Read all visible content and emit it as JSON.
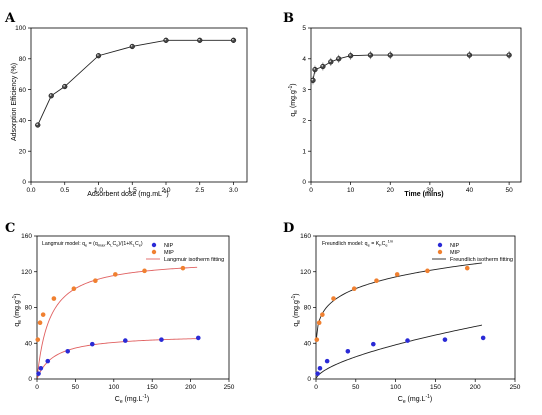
{
  "chart_data": [
    {
      "panel": "A",
      "type": "line",
      "xlabel": "Adsorbent dose (mg.mL⁻¹)",
      "ylabel": "Adsorption Efficiency (%)",
      "xlim": [
        0,
        3.2
      ],
      "ylim": [
        0,
        100
      ],
      "xticks": [
        "0.0",
        "0.5",
        "1.0",
        "1.5",
        "2.0",
        "2.5",
        "3.0"
      ],
      "yticks": [
        "0",
        "20",
        "40",
        "60",
        "80",
        "100"
      ],
      "series": [
        {
          "x": [
            0.1,
            0.3,
            0.5,
            1.0,
            1.5,
            2.0,
            2.5,
            3.0
          ],
          "y": [
            37,
            56,
            62,
            82,
            88,
            92,
            92,
            92
          ]
        }
      ]
    },
    {
      "panel": "B",
      "type": "line",
      "xlabel": "Time (mins)",
      "ylabel": "qe (mg.g⁻¹)",
      "xlim": [
        0,
        53
      ],
      "ylim": [
        0,
        5
      ],
      "xticks": [
        "0",
        "10",
        "20",
        "30",
        "40",
        "50"
      ],
      "yticks": [
        "0",
        "1",
        "2",
        "3",
        "4",
        "5"
      ],
      "series": [
        {
          "x": [
            0.5,
            1,
            3,
            5,
            7,
            10,
            15,
            20,
            40,
            50
          ],
          "y": [
            3.3,
            3.65,
            3.75,
            3.9,
            4.0,
            4.1,
            4.12,
            4.12,
            4.12,
            4.12
          ]
        }
      ]
    },
    {
      "panel": "C",
      "type": "scatter",
      "xlabel": "Ce (mg.L⁻¹)",
      "ylabel": "qe (mg.g⁻¹)",
      "xlim": [
        0,
        250
      ],
      "ylim": [
        0,
        160
      ],
      "xticks": [
        "0",
        "50",
        "100",
        "150",
        "200",
        "250"
      ],
      "yticks": [
        "0",
        "40",
        "80",
        "120",
        "160"
      ],
      "model": "Langmuir model: qe = (qmax.KLCe)/(1+KLCe)",
      "legend": [
        "NIP",
        "MIP",
        "Langmuir isotherm fitting"
      ],
      "series": [
        {
          "name": "NIP",
          "color": "#2a2ad6",
          "x": [
            2,
            5,
            14,
            40,
            72,
            115,
            162,
            210
          ],
          "y": [
            6,
            12,
            20,
            31,
            39,
            43,
            44,
            46
          ]
        },
        {
          "name": "MIP",
          "color": "#f08030",
          "x": [
            1,
            4,
            8,
            22,
            48,
            76,
            102,
            140,
            190
          ],
          "y": [
            44,
            63,
            72,
            90,
            101,
            110,
            117,
            121,
            124
          ]
        }
      ],
      "fits": [
        {
          "for": "NIP",
          "qmax": 50,
          "K": 0.045
        },
        {
          "for": "MIP",
          "qmax": 135,
          "K": 0.06
        }
      ]
    },
    {
      "panel": "D",
      "type": "scatter",
      "xlabel": "Ce (mg.L⁻¹)",
      "ylabel": "qe (mg.g⁻¹)",
      "xlim": [
        0,
        250
      ],
      "ylim": [
        0,
        160
      ],
      "xticks": [
        "0",
        "50",
        "100",
        "150",
        "200",
        "250"
      ],
      "yticks": [
        "0",
        "40",
        "80",
        "120",
        "160"
      ],
      "model": "Freundlich model: qe = KFCe¹ᐟⁿ",
      "legend": [
        "NIP",
        "MIP",
        "Freundlich isotherm fitting"
      ],
      "series": [
        {
          "name": "NIP",
          "color": "#2a2ad6",
          "x": [
            2,
            5,
            14,
            40,
            72,
            115,
            162,
            210
          ],
          "y": [
            6,
            12,
            20,
            31,
            39,
            43,
            44,
            46
          ]
        },
        {
          "name": "MIP",
          "color": "#f08030",
          "x": [
            1,
            4,
            8,
            22,
            48,
            76,
            102,
            140,
            190
          ],
          "y": [
            44,
            63,
            72,
            90,
            101,
            110,
            117,
            121,
            124
          ]
        }
      ],
      "fits": [
        {
          "for": "NIP",
          "K": 2.2,
          "n_inv": 0.62
        },
        {
          "for": "MIP",
          "K": 51,
          "n_inv": 0.175
        }
      ]
    }
  ]
}
